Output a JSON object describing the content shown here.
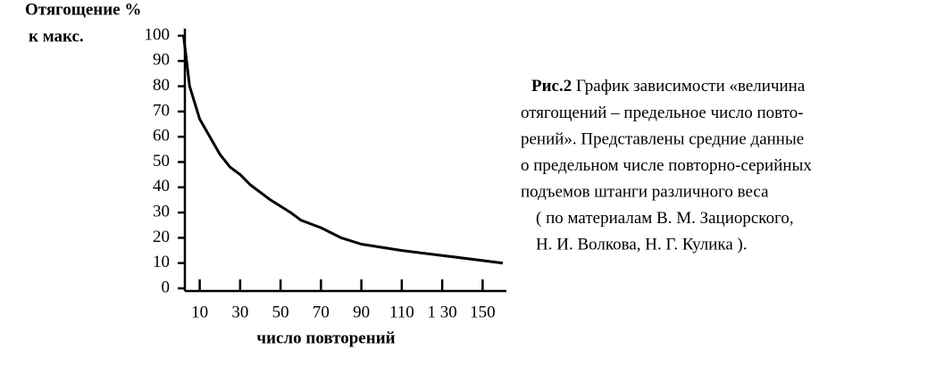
{
  "chart_data": {
    "type": "line",
    "ylabel": [
      "Отягощение %",
      "к макс."
    ],
    "xlabel": "число повторений",
    "x": [
      2,
      5,
      10,
      20,
      25,
      30,
      35,
      45,
      55,
      60,
      70,
      80,
      90,
      110,
      130,
      150,
      160
    ],
    "values": [
      100,
      80,
      67,
      53,
      48,
      45,
      41,
      35,
      30,
      27,
      24,
      20,
      17.5,
      15,
      13,
      11,
      10
    ],
    "color": "#000000",
    "xlim": [
      0,
      160
    ],
    "xticks": [
      10,
      30,
      50,
      70,
      90,
      110,
      {
        "value": 130,
        "label": "1 30"
      },
      150
    ],
    "ylim": [
      0,
      100
    ],
    "yticks": [
      0,
      10,
      20,
      30,
      40,
      50,
      60,
      70,
      80,
      90,
      100
    ],
    "caption": {
      "label": "Рис.2",
      "lines": [
        "График зависимости «величина",
        "отягощений – предельное число повто-",
        "рений». Представлены средние данные",
        "о предельном числе повторно-серийных",
        "подъемов штанги различного веса",
        "( по материалам В. М. Зациорского,",
        "Н. И. Волкова, Н. Г. Кулика )."
      ]
    }
  }
}
